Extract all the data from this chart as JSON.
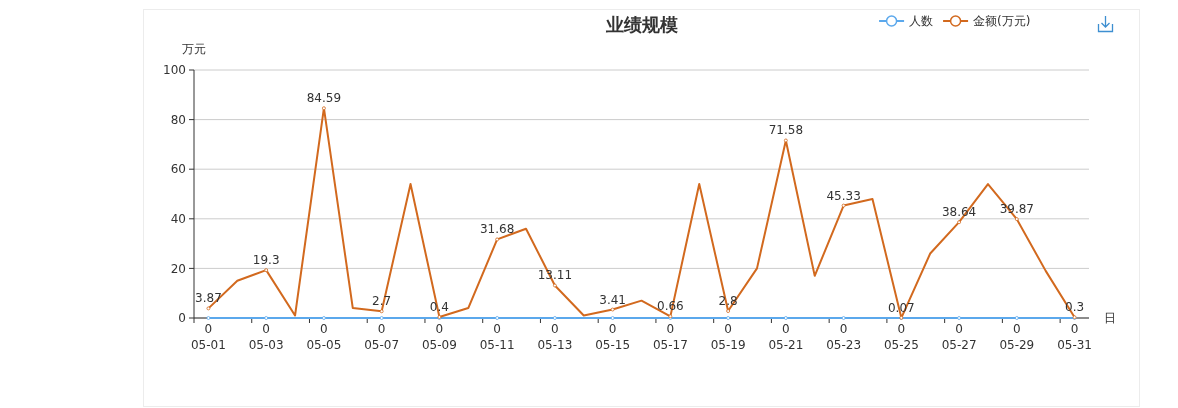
{
  "chart_data": {
    "type": "line",
    "title": "业绩规模",
    "ylabel": "万元",
    "xlabel": "日",
    "categories": [
      "05-01",
      null,
      "05-03",
      null,
      "05-05",
      null,
      "05-07",
      null,
      "05-09",
      null,
      "05-11",
      null,
      "05-13",
      null,
      "05-15",
      null,
      "05-17",
      null,
      "05-19",
      null,
      "05-21",
      null,
      "05-23",
      null,
      "05-25",
      null,
      "05-27",
      null,
      "05-29",
      null,
      "05-31"
    ],
    "ylim": [
      0,
      100
    ],
    "yticks": [
      0,
      20,
      40,
      60,
      80,
      100
    ],
    "grid": "y",
    "legend": "top right",
    "marker": "circle",
    "line_style": "solid",
    "series": [
      {
        "name": "人数",
        "color": "#5ba8ec",
        "values": [
          0,
          0,
          0,
          0,
          0,
          0,
          0,
          0,
          0,
          0,
          0,
          0,
          0,
          0,
          0,
          0,
          0,
          0,
          0,
          0,
          0,
          0,
          0,
          0,
          0,
          0,
          0,
          0,
          0,
          0,
          0
        ],
        "value_labels": [
          "0",
          null,
          "0",
          null,
          "0",
          null,
          "0",
          null,
          "0",
          null,
          "0",
          null,
          "0",
          null,
          "0",
          null,
          "0",
          null,
          "0",
          null,
          "0",
          null,
          "0",
          null,
          "0",
          null,
          "0",
          null,
          "0",
          null,
          "0"
        ]
      },
      {
        "name": "金额(万元)",
        "color": "#d2691e",
        "values": [
          3.87,
          15,
          19.3,
          1,
          84.59,
          4,
          2.7,
          54,
          0.4,
          4,
          31.68,
          36,
          13.11,
          1,
          3.41,
          7,
          0.66,
          54,
          2.8,
          20,
          71.58,
          17,
          45.33,
          48,
          0.07,
          26,
          38.64,
          54,
          39.87,
          19,
          0.3
        ],
        "value_labels": [
          "3.87",
          null,
          "19.3",
          null,
          "84.59",
          null,
          "2.7",
          null,
          "0.4",
          null,
          "31.68",
          null,
          "13.11",
          null,
          "3.41",
          null,
          "0.66",
          null,
          "2.8",
          null,
          "71.58",
          null,
          "45.33",
          null,
          "0.07",
          null,
          "38.64",
          null,
          "39.87",
          null,
          "0.3"
        ]
      }
    ]
  }
}
